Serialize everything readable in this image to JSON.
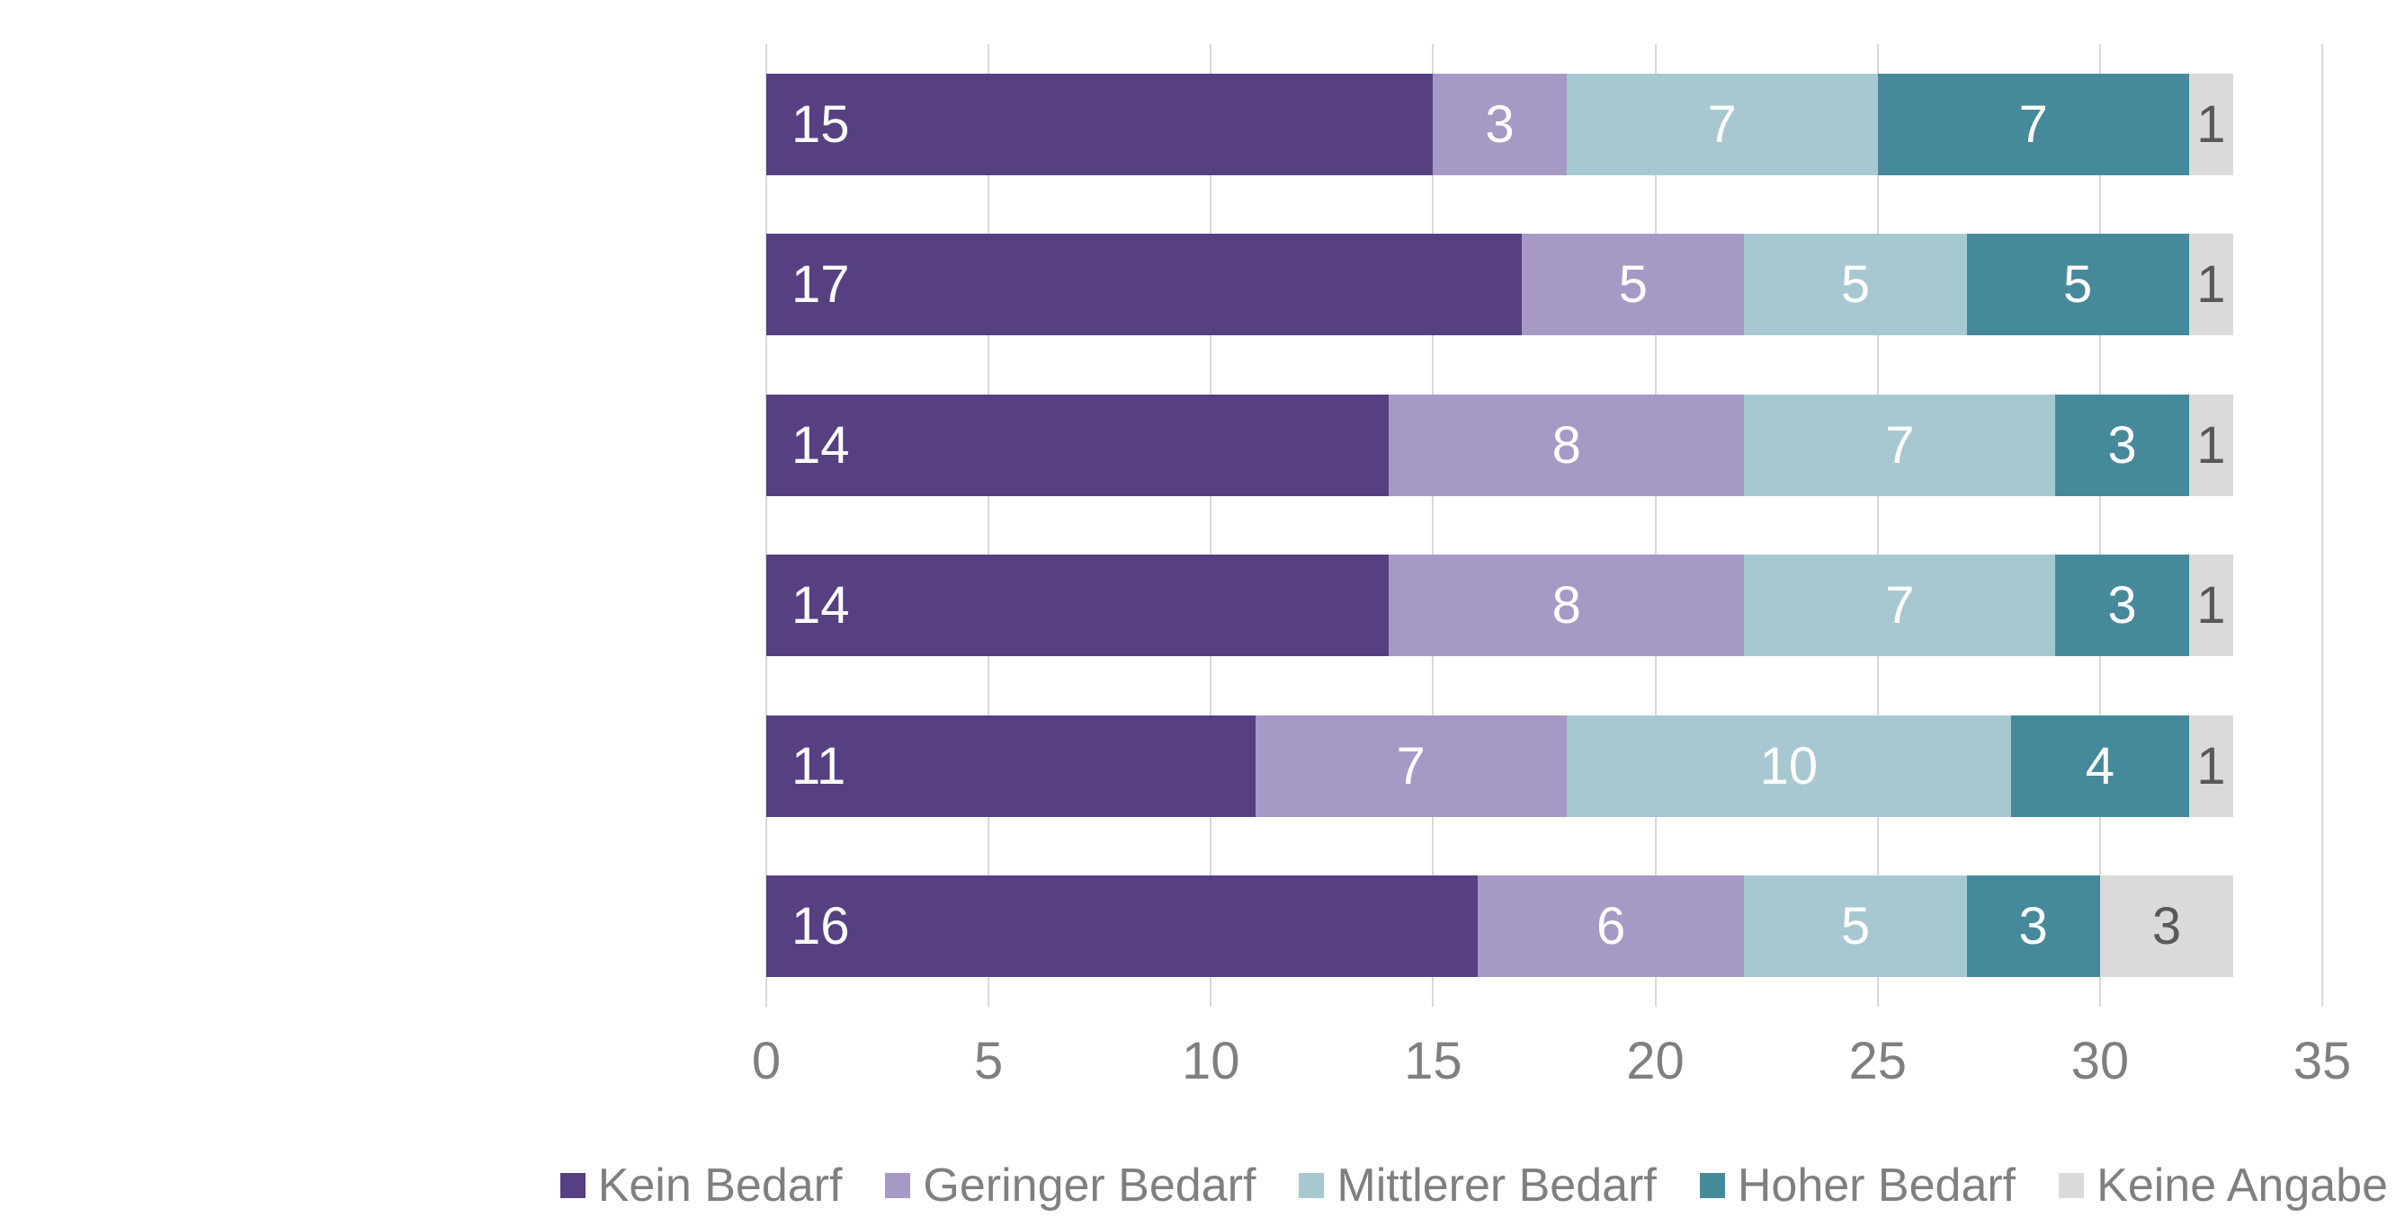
{
  "chart_data": {
    "type": "bar",
    "orientation": "horizontal",
    "stacked": true,
    "series": [
      {
        "name": "Kein Bedarf",
        "color": "#564082",
        "label_color": "#FFFFFF",
        "values": [
          15,
          17,
          14,
          14,
          11,
          16
        ]
      },
      {
        "name": "Geringer Bedarf",
        "color": "#A799C6",
        "label_color": "#FFFFFF",
        "values": [
          3,
          5,
          8,
          8,
          7,
          6
        ]
      },
      {
        "name": "Mittlerer Bedarf",
        "color": "#A8C8D1",
        "label_color": "#FFFFFF",
        "values": [
          7,
          5,
          7,
          7,
          10,
          5
        ]
      },
      {
        "name": "Hoher Bedarf",
        "color": "#46899B",
        "label_color": "#FFFFFF",
        "values": [
          7,
          5,
          3,
          3,
          4,
          3
        ]
      },
      {
        "name": "Keine Angabe",
        "color": "#DADADA",
        "label_color": "#595959",
        "values": [
          1,
          1,
          1,
          1,
          1,
          3
        ]
      }
    ],
    "x_axis": {
      "ticks": [
        0,
        5,
        10,
        15,
        20,
        25,
        30,
        35
      ],
      "max": 35,
      "label_color": "#7F7F7F"
    },
    "grid": true,
    "gridline_color": "#D9D9D9",
    "legend_position": "bottom",
    "legend_text_color": "#7F7F7F",
    "row_count": 6
  }
}
